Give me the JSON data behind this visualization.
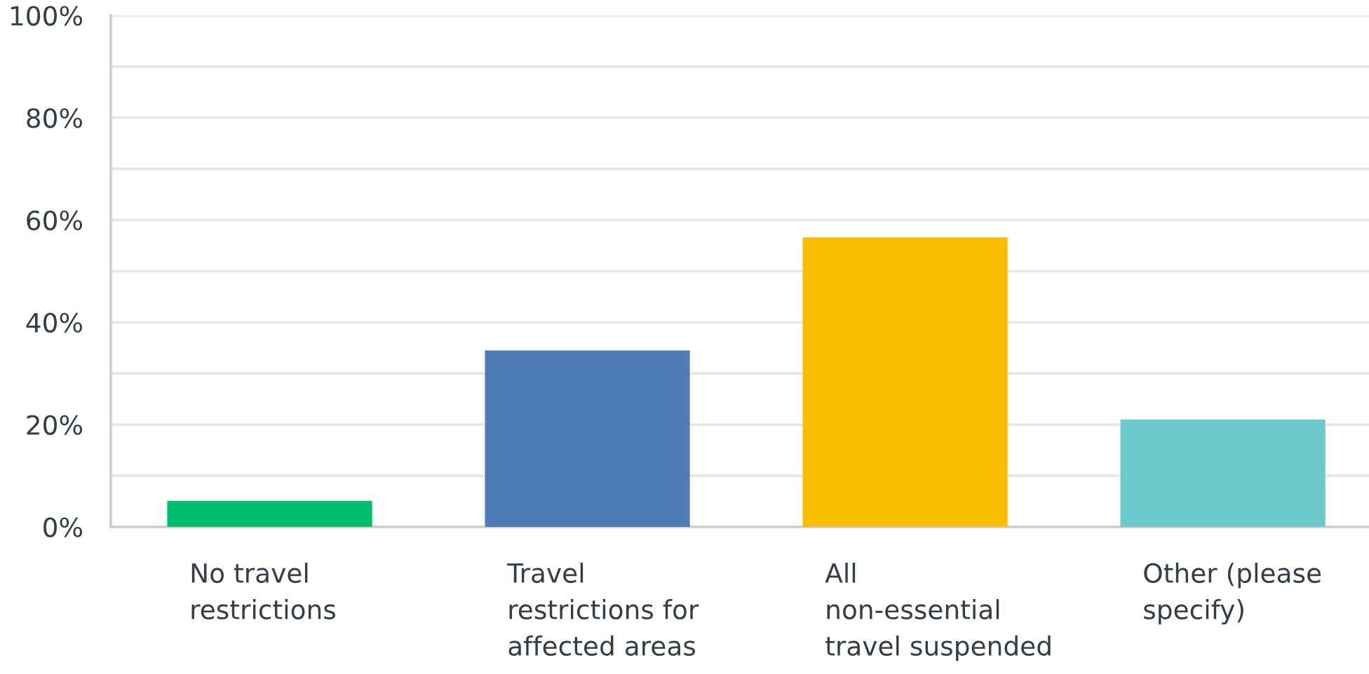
{
  "chart_data": {
    "type": "bar",
    "categories": [
      "No travel\nrestrictions",
      "Travel\nrestrictions for\naffected areas",
      "All\nnon-essential\ntravel suspended",
      "Other (please\nspecify)"
    ],
    "values": [
      5.1,
      34.5,
      56.6,
      21.0
    ],
    "colors": [
      "#00bf6f",
      "#507cb6",
      "#f9be00",
      "#6bc8cd"
    ],
    "ylim": [
      0,
      100
    ],
    "yticks": [
      {
        "value": 0,
        "label": "0%"
      },
      {
        "value": 10,
        "label": null
      },
      {
        "value": 20,
        "label": "20%"
      },
      {
        "value": 30,
        "label": null
      },
      {
        "value": 40,
        "label": "40%"
      },
      {
        "value": 50,
        "label": null
      },
      {
        "value": 60,
        "label": "60%"
      },
      {
        "value": 70,
        "label": null
      },
      {
        "value": 80,
        "label": "80%"
      },
      {
        "value": 90,
        "label": null
      },
      {
        "value": 100,
        "label": "100%"
      }
    ],
    "grid": "y"
  }
}
